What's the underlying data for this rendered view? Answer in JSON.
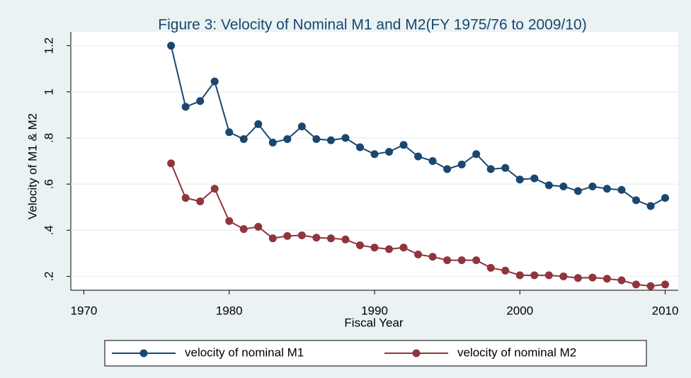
{
  "chart_data": {
    "type": "line",
    "title": "Figure 3: Velocity of Nominal M1 and M2(FY 1975/76 to 2009/10)",
    "x_label": "Fiscal Year",
    "y_label": "Velocity of M1 & M2",
    "x": [
      1976,
      1977,
      1978,
      1979,
      1980,
      1981,
      1982,
      1983,
      1984,
      1985,
      1986,
      1987,
      1988,
      1989,
      1990,
      1991,
      1992,
      1993,
      1994,
      1995,
      1996,
      1997,
      1998,
      1999,
      2000,
      2001,
      2002,
      2003,
      2004,
      2005,
      2006,
      2007,
      2008,
      2009,
      2010
    ],
    "series": [
      {
        "name": "velocity of nominal M1",
        "color": "#1a476f",
        "values": [
          1.2,
          0.935,
          0.96,
          1.045,
          0.825,
          0.795,
          0.86,
          0.78,
          0.795,
          0.85,
          0.795,
          0.79,
          0.8,
          0.76,
          0.73,
          0.74,
          0.77,
          0.72,
          0.7,
          0.665,
          0.685,
          0.73,
          0.665,
          0.67,
          0.62,
          0.625,
          0.595,
          0.59,
          0.57,
          0.59,
          0.58,
          0.575,
          0.53,
          0.505,
          0.54
        ]
      },
      {
        "name": "velocity of nominal M2",
        "color": "#90353b",
        "values": [
          0.69,
          0.54,
          0.525,
          0.58,
          0.44,
          0.405,
          0.415,
          0.365,
          0.375,
          0.378,
          0.368,
          0.365,
          0.36,
          0.335,
          0.325,
          0.318,
          0.325,
          0.295,
          0.285,
          0.27,
          0.27,
          0.27,
          0.237,
          0.225,
          0.205,
          0.205,
          0.205,
          0.2,
          0.193,
          0.195,
          0.19,
          0.183,
          0.165,
          0.158,
          0.165
        ]
      }
    ],
    "xlim": [
      1969.1,
      2010.9
    ],
    "xticks": [
      1970,
      1980,
      1990,
      2000,
      2010
    ],
    "ylim": [
      0.14,
      1.26
    ],
    "yticks": [
      {
        "value": 0.2,
        "label": ".2"
      },
      {
        "value": 0.4,
        "label": ".4"
      },
      {
        "value": 0.6,
        "label": ".6"
      },
      {
        "value": 0.8,
        "label": ".8"
      },
      1,
      1.2
    ],
    "grid": true,
    "legend": "bottom"
  }
}
